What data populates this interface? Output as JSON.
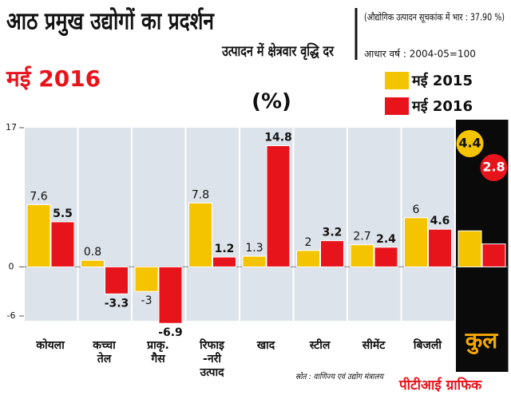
{
  "chart_data": {
    "type": "bar",
    "title": "आठ प्रमुख उद्योगों का प्रदर्शन",
    "subtitle": "मई 2016",
    "axis_title": "उत्पादन में क्षेत्रवार वृद्धि दर",
    "unit": "(%)",
    "note": "(औद्योगिक उत्पादन सूचकांक में भार : 37.90 %)",
    "base_year": "आधार वर्ष : 2004-05=100",
    "source": "स्रोत : वाणिज्य एवं उद्योग मंत्रालय",
    "credit": "पीटीआई ग्राफिक",
    "categories": [
      "कोयला",
      "कच्चा\nतेल",
      "प्राकृ.\nगैस",
      "रिफाइ\n-नरी\nउत्पाद",
      "खाद",
      "स्टील",
      "सीमेंट",
      "बिजली",
      "कुल"
    ],
    "series": [
      {
        "name": "मई 2015",
        "color": "#f5c400",
        "values": [
          7.6,
          0.8,
          -3.0,
          7.8,
          1.3,
          2.0,
          2.7,
          6.0,
          4.4
        ]
      },
      {
        "name": "मई 2016",
        "color": "#e8141c",
        "values": [
          5.5,
          -3.3,
          -6.9,
          1.2,
          14.8,
          3.2,
          2.4,
          4.6,
          2.8
        ]
      }
    ],
    "ylim": [
      -6,
      17
    ],
    "yticks": [
      17,
      0,
      -6
    ]
  }
}
